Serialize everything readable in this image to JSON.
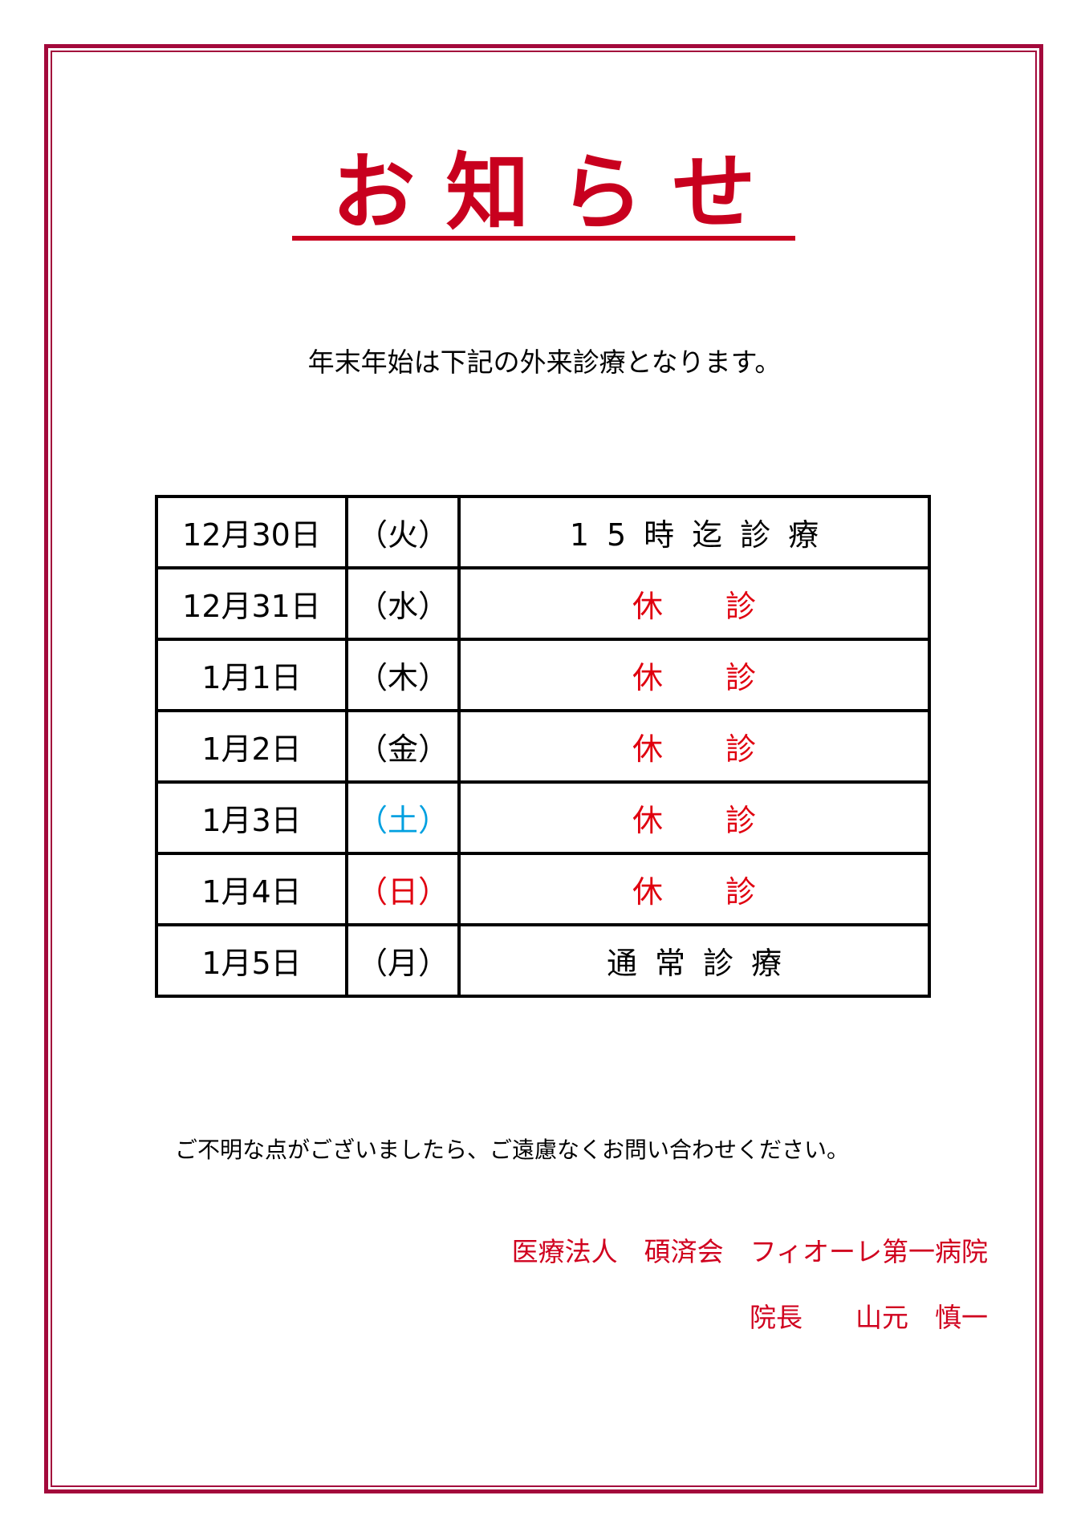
{
  "title": "お知らせ",
  "subtitle": "年末年始は下記の外来診療となります。",
  "colors": {
    "border": "#a3093b",
    "title": "#c8001e",
    "closed": "#e0000f",
    "saturday": "#00a0e0",
    "sunday": "#e0000f"
  },
  "schedule": [
    {
      "date": "12月30日",
      "day": "（火）",
      "status": "15時迄診療",
      "type": "partial"
    },
    {
      "date": "12月31日",
      "day": "（水）",
      "status": "休診",
      "type": "closed"
    },
    {
      "date": "1月1日",
      "day": "（木）",
      "status": "休診",
      "type": "closed"
    },
    {
      "date": "1月2日",
      "day": "（金）",
      "status": "休診",
      "type": "closed"
    },
    {
      "date": "1月3日",
      "day": "（土）",
      "status": "休診",
      "type": "closed",
      "day_color": "saturday"
    },
    {
      "date": "1月4日",
      "day": "（日）",
      "status": "休診",
      "type": "closed",
      "day_color": "sunday"
    },
    {
      "date": "1月5日",
      "day": "（月）",
      "status": "通常診療",
      "type": "normal"
    }
  ],
  "closing": "ご不明な点がございましたら、ご遠慮なくお問い合わせください。",
  "organization": "医療法人　碩済会　フィオーレ第一病院",
  "director": "院長　　山元　慎一"
}
